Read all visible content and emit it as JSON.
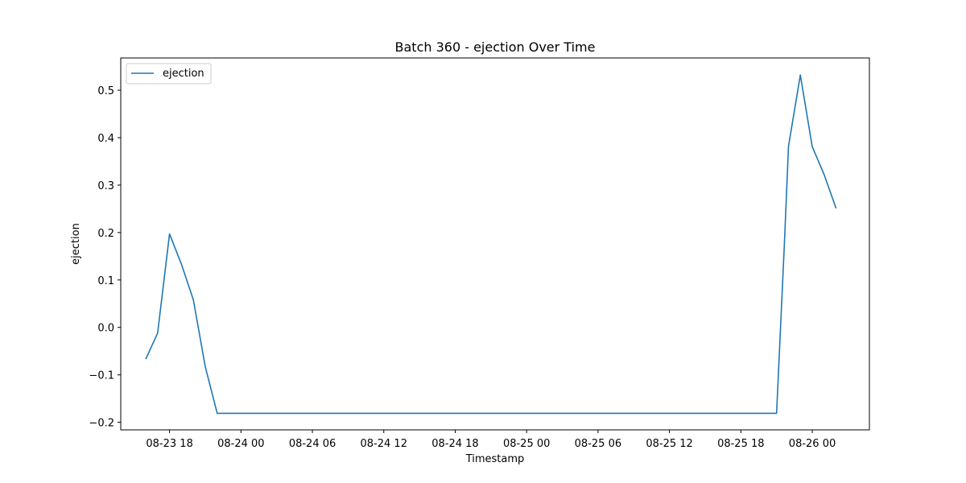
{
  "chart_data": {
    "type": "line",
    "title": "Batch 360 - ejection Over Time",
    "xlabel": "Timestamp",
    "ylabel": "ejection",
    "x_ticks": [
      "08-23 18",
      "08-24 00",
      "08-24 06",
      "08-24 12",
      "08-24 18",
      "08-25 00",
      "08-25 06",
      "08-25 12",
      "08-25 18",
      "08-26 00"
    ],
    "x_tick_values": [
      "2023-08-23T18:00",
      "2023-08-24T00:00",
      "2023-08-24T06:00",
      "2023-08-24T12:00",
      "2023-08-24T18:00",
      "2023-08-25T00:00",
      "2023-08-25T06:00",
      "2023-08-25T12:00",
      "2023-08-25T18:00",
      "2023-08-26T00:00"
    ],
    "y_ticks": [
      -0.2,
      -0.1,
      0.0,
      0.1,
      0.2,
      0.3,
      0.4,
      0.5
    ],
    "xlim": [
      "2023-08-23T13:54",
      "2023-08-26T04:48"
    ],
    "ylim": [
      -0.216,
      0.568
    ],
    "grid": false,
    "legend": "top-left",
    "series": [
      {
        "name": "ejection",
        "color": "#1f77b4",
        "x": [
          "2023-08-23T16:00",
          "2023-08-23T17:00",
          "2023-08-23T18:00",
          "2023-08-23T19:00",
          "2023-08-23T20:00",
          "2023-08-23T21:00",
          "2023-08-23T22:00",
          "2023-08-23T23:00",
          "2023-08-25T21:00",
          "2023-08-25T21:40",
          "2023-08-25T22:00",
          "2023-08-25T23:00",
          "2023-08-26T00:00",
          "2023-08-26T01:00",
          "2023-08-26T02:00"
        ],
        "y": [
          -0.067,
          -0.012,
          0.197,
          0.133,
          0.058,
          -0.083,
          -0.181,
          -0.181,
          -0.181,
          0.18,
          0.382,
          0.532,
          0.381,
          0.322,
          0.251
        ]
      }
    ]
  }
}
